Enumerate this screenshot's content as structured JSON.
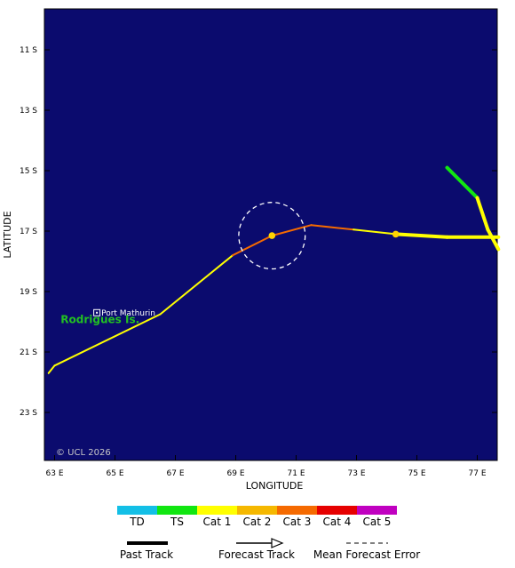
{
  "map": {
    "background_color": "#0b0b6e",
    "copyright": "© UCL 2026",
    "axis_labels": {
      "x": "LONGITUDE",
      "y": "LATITUDE"
    },
    "lon_ticks": [
      "63 E",
      "65 E",
      "67 E",
      "69 E",
      "71 E",
      "73 E",
      "75 E",
      "77 E"
    ],
    "lat_ticks": [
      "11 S",
      "13 S",
      "15 S",
      "17 S",
      "19 S",
      "21 S",
      "23 S"
    ],
    "places": [
      {
        "name": "Port Mathurin",
        "lon": 64.4,
        "lat": -19.7
      }
    ],
    "islands": [
      {
        "name": "Rodrigues Is.",
        "color": "#22c022",
        "lon": 63.2,
        "lat": -20.05
      }
    ],
    "forecast_error_circle": {
      "lon": 70.2,
      "lat": -17.15,
      "radius_deg": 1.1
    }
  },
  "intensity_scale": [
    {
      "label": "TD",
      "color": "#13bfe6"
    },
    {
      "label": "TS",
      "color": "#11e611"
    },
    {
      "label": "Cat 1",
      "color": "#ffff00"
    },
    {
      "label": "Cat 2",
      "color": "#f5b800"
    },
    {
      "label": "Cat 3",
      "color": "#f56a00"
    },
    {
      "label": "Cat 4",
      "color": "#e60000"
    },
    {
      "label": "Cat 5",
      "color": "#c000c0"
    }
  ],
  "track_legend": {
    "past": "Past Track",
    "forecast": "Forecast Track",
    "error": "Mean Forecast Error"
  },
  "tracks": [
    {
      "name": "storm-a-forecast",
      "width": 2,
      "points": [
        {
          "lon": 62.8,
          "lat": -21.7,
          "cat": "TS"
        },
        {
          "lon": 63.0,
          "lat": -21.45,
          "cat": "Cat 1"
        },
        {
          "lon": 66.5,
          "lat": -19.75,
          "cat": "Cat 1"
        },
        {
          "lon": 68.9,
          "lat": -17.8,
          "cat": "Cat 1"
        },
        {
          "lon": 70.2,
          "lat": -17.15,
          "cat": "Cat 3"
        },
        {
          "lon": 71.5,
          "lat": -16.8,
          "cat": "Cat 3"
        },
        {
          "lon": 72.9,
          "lat": -16.95,
          "cat": "Cat 3"
        },
        {
          "lon": 74.3,
          "lat": -17.1,
          "cat": "Cat 1"
        }
      ]
    },
    {
      "name": "storm-b-past",
      "width": 4,
      "points": [
        {
          "lon": 76.0,
          "lat": -14.9,
          "cat": "TS"
        },
        {
          "lon": 77.0,
          "lat": -15.9,
          "cat": "TS"
        },
        {
          "lon": 77.35,
          "lat": -16.95,
          "cat": "Cat 1"
        },
        {
          "lon": 77.7,
          "lat": -17.6,
          "cat": "Cat 1"
        }
      ]
    },
    {
      "name": "storm-c-past",
      "width": 4,
      "points": [
        {
          "lon": 74.3,
          "lat": -17.1,
          "cat": "Cat 1"
        },
        {
          "lon": 76.0,
          "lat": -17.2,
          "cat": "Cat 1"
        },
        {
          "lon": 77.7,
          "lat": -17.2,
          "cat": "Cat 1"
        }
      ]
    }
  ],
  "positions": [
    {
      "lon": 70.2,
      "lat": -17.15,
      "color": "#ffd400"
    },
    {
      "lon": 74.3,
      "lat": -17.1,
      "color": "#ffd400"
    }
  ]
}
